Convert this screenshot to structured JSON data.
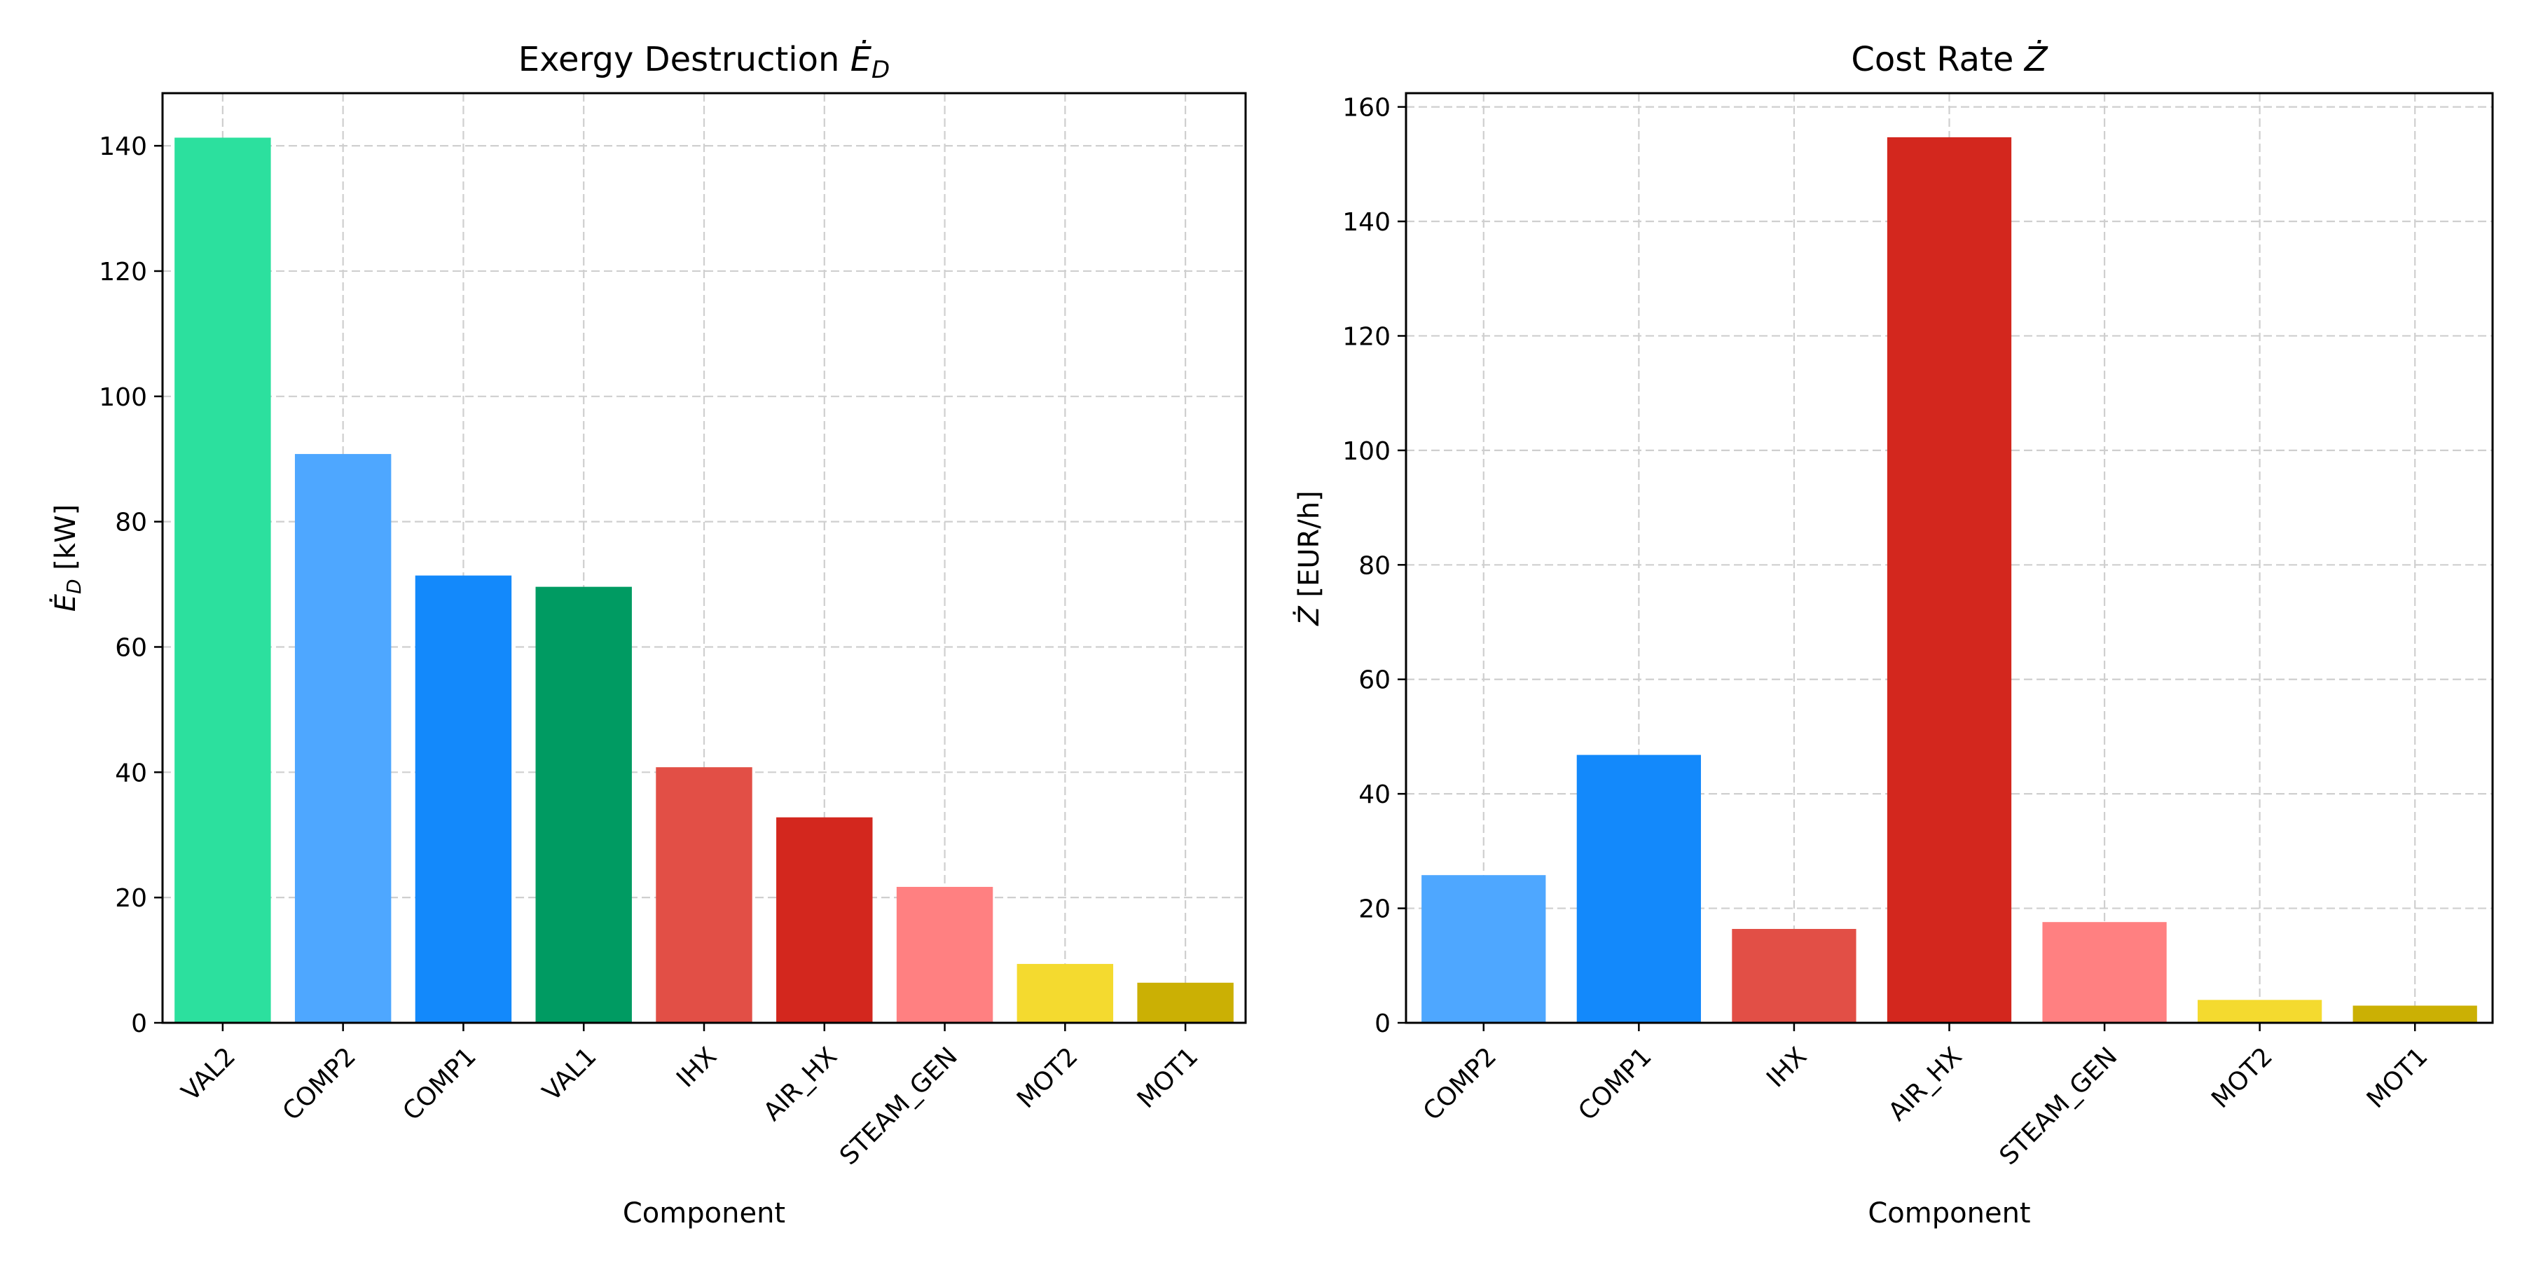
{
  "chart_data": [
    {
      "type": "bar",
      "title": "Exergy Destruction",
      "title_symbol": "E",
      "title_subscript": "D",
      "xlabel": "Component",
      "ylabel_symbol": "E",
      "ylabel_subscript": "D",
      "ylabel_unit": "[kW]",
      "categories": [
        "VAL2",
        "COMP2",
        "COMP1",
        "VAL1",
        "IHX",
        "AIR_HX",
        "STEAM_GEN",
        "MOT2",
        "MOT1"
      ],
      "values": [
        141.3,
        90.8,
        71.4,
        69.6,
        40.8,
        32.8,
        21.7,
        9.4,
        6.4
      ],
      "colors": [
        "#2ce09e",
        "#4ea7ff",
        "#1389fb",
        "#009b62",
        "#e24f46",
        "#d3271e",
        "#ff8081",
        "#f4da2f",
        "#cbb004"
      ],
      "ylim": [
        0,
        148.4
      ],
      "yticks": [
        0,
        20,
        40,
        60,
        80,
        100,
        120,
        140
      ],
      "grid": true
    },
    {
      "type": "bar",
      "title": "Cost Rate",
      "title_symbol": "Z",
      "xlabel": "Component",
      "ylabel_symbol": "Z",
      "ylabel_unit": "[EUR/h]",
      "categories": [
        "COMP2",
        "COMP1",
        "IHX",
        "AIR_HX",
        "STEAM_GEN",
        "MOT2",
        "MOT1"
      ],
      "values": [
        25.8,
        46.8,
        16.4,
        154.7,
        17.6,
        4.0,
        3.0
      ],
      "colors": [
        "#4ea7ff",
        "#1389fb",
        "#e24f46",
        "#d3271e",
        "#ff8081",
        "#f4da2f",
        "#cbb004"
      ],
      "ylim": [
        0,
        162.4
      ],
      "yticks": [
        0,
        20,
        40,
        60,
        80,
        100,
        120,
        140,
        160
      ],
      "grid": true
    }
  ]
}
